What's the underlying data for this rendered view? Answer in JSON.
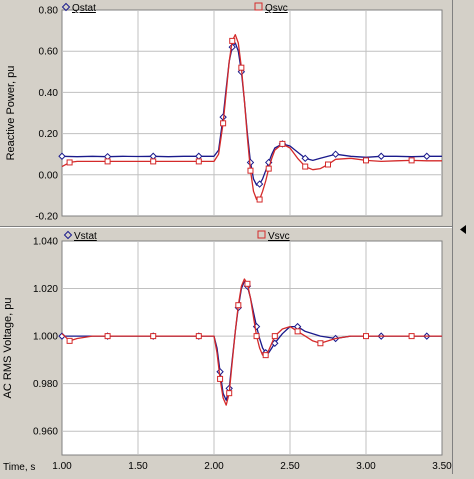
{
  "colors": {
    "window_bg": "#d4d0c8",
    "plot_bg": "#ffffff",
    "grid": "#c0c0c0",
    "stat": "#1a1a8c",
    "svc": "#d42a2a"
  },
  "time_axis": {
    "label": "Time, s",
    "ticks": [
      "1.00",
      "1.50",
      "2.00",
      "2.50",
      "3.00",
      "3.50"
    ]
  },
  "chart_data": [
    {
      "type": "line",
      "ylabel": "Reactive Power, pu",
      "xlim": [
        1.0,
        3.5
      ],
      "ylim": [
        -0.2,
        0.8
      ],
      "yticks": [
        "0.80",
        "0.60",
        "0.40",
        "0.20",
        "0.00",
        "-0.20"
      ],
      "grid": true,
      "legend": [
        "Qstat",
        "Qsvc"
      ],
      "series": [
        {
          "name": "Qstat",
          "marker": "diamond",
          "x": [
            1.0,
            1.1,
            1.2,
            1.3,
            1.4,
            1.5,
            1.6,
            1.7,
            1.8,
            1.9,
            2.0,
            2.03,
            2.06,
            2.08,
            2.1,
            2.12,
            2.14,
            2.16,
            2.18,
            2.2,
            2.22,
            2.24,
            2.26,
            2.28,
            2.3,
            2.32,
            2.34,
            2.36,
            2.38,
            2.4,
            2.45,
            2.5,
            2.55,
            2.6,
            2.65,
            2.7,
            2.8,
            2.9,
            3.0,
            3.1,
            3.2,
            3.3,
            3.4,
            3.5
          ],
          "values": [
            0.09,
            0.088,
            0.09,
            0.088,
            0.09,
            0.089,
            0.09,
            0.088,
            0.09,
            0.09,
            0.09,
            0.12,
            0.28,
            0.42,
            0.55,
            0.62,
            0.64,
            0.6,
            0.5,
            0.36,
            0.2,
            0.06,
            -0.02,
            -0.05,
            -0.045,
            -0.02,
            0.02,
            0.06,
            0.1,
            0.13,
            0.15,
            0.14,
            0.11,
            0.08,
            0.07,
            0.08,
            0.1,
            0.09,
            0.085,
            0.09,
            0.09,
            0.088,
            0.09,
            0.09
          ]
        },
        {
          "name": "Qsvc",
          "marker": "square",
          "x": [
            1.0,
            1.05,
            1.1,
            1.2,
            1.3,
            1.4,
            1.5,
            1.6,
            1.7,
            1.8,
            1.9,
            2.0,
            2.03,
            2.06,
            2.08,
            2.1,
            2.12,
            2.14,
            2.16,
            2.18,
            2.2,
            2.22,
            2.24,
            2.26,
            2.28,
            2.3,
            2.32,
            2.34,
            2.36,
            2.38,
            2.4,
            2.45,
            2.5,
            2.55,
            2.6,
            2.65,
            2.7,
            2.75,
            2.8,
            2.9,
            3.0,
            3.1,
            3.2,
            3.3,
            3.4,
            3.5
          ],
          "values": [
            0.04,
            0.06,
            0.065,
            0.065,
            0.065,
            0.065,
            0.065,
            0.065,
            0.065,
            0.065,
            0.065,
            0.065,
            0.1,
            0.25,
            0.4,
            0.55,
            0.65,
            0.68,
            0.64,
            0.52,
            0.36,
            0.18,
            0.02,
            -0.08,
            -0.12,
            -0.12,
            -0.08,
            -0.03,
            0.03,
            0.08,
            0.12,
            0.15,
            0.13,
            0.08,
            0.04,
            0.025,
            0.03,
            0.05,
            0.075,
            0.08,
            0.07,
            0.065,
            0.068,
            0.07,
            0.068,
            0.068
          ]
        }
      ]
    },
    {
      "type": "line",
      "ylabel": "AC RMS Voltage, pu",
      "xlim": [
        1.0,
        3.5
      ],
      "ylim": [
        0.95,
        1.04
      ],
      "yticks": [
        "1.040",
        "1.020",
        "1.000",
        "0.980",
        "0.960"
      ],
      "grid": true,
      "legend": [
        "Vstat",
        "Vsvc"
      ],
      "series": [
        {
          "name": "Vstat",
          "marker": "diamond",
          "x": [
            1.0,
            1.1,
            1.2,
            1.3,
            1.4,
            1.5,
            1.6,
            1.7,
            1.8,
            1.9,
            2.0,
            2.02,
            2.04,
            2.06,
            2.08,
            2.1,
            2.12,
            2.14,
            2.16,
            2.18,
            2.2,
            2.22,
            2.24,
            2.26,
            2.28,
            2.3,
            2.32,
            2.34,
            2.36,
            2.38,
            2.4,
            2.45,
            2.5,
            2.55,
            2.6,
            2.7,
            2.8,
            2.9,
            3.0,
            3.1,
            3.2,
            3.3,
            3.4,
            3.5
          ],
          "values": [
            1.0,
            1.0,
            1.0,
            1.0,
            1.0,
            1.0,
            1.0,
            1.0,
            1.0,
            1.0,
            1.0,
            0.995,
            0.985,
            0.976,
            0.973,
            0.978,
            0.99,
            1.002,
            1.012,
            1.02,
            1.023,
            1.021,
            1.016,
            1.01,
            1.004,
            0.999,
            0.995,
            0.993,
            0.993,
            0.995,
            0.997,
            1.001,
            1.004,
            1.004,
            1.002,
            1.0,
            0.999,
            1.0,
            1.0,
            1.0,
            1.0,
            1.0,
            1.0,
            1.0
          ]
        },
        {
          "name": "Vsvc",
          "marker": "square",
          "x": [
            1.0,
            1.05,
            1.1,
            1.2,
            1.3,
            1.4,
            1.5,
            1.6,
            1.7,
            1.8,
            1.9,
            2.0,
            2.02,
            2.04,
            2.06,
            2.08,
            2.1,
            2.12,
            2.14,
            2.16,
            2.18,
            2.2,
            2.22,
            2.24,
            2.26,
            2.28,
            2.3,
            2.32,
            2.34,
            2.36,
            2.38,
            2.4,
            2.45,
            2.5,
            2.55,
            2.6,
            2.65,
            2.7,
            2.8,
            2.9,
            3.0,
            3.1,
            3.2,
            3.3,
            3.4,
            3.5
          ],
          "values": [
            1.001,
            0.998,
            0.999,
            1.0,
            1.0,
            1.0,
            1.0,
            1.0,
            1.0,
            1.0,
            1.0,
            1.0,
            0.993,
            0.982,
            0.974,
            0.971,
            0.976,
            0.989,
            1.002,
            1.013,
            1.021,
            1.024,
            1.022,
            1.016,
            1.008,
            1.0,
            0.995,
            0.992,
            0.992,
            0.994,
            0.997,
            1.0,
            1.003,
            1.004,
            1.002,
            1.0,
            0.998,
            0.997,
            0.999,
            1.0,
            1.0,
            1.0,
            1.0,
            1.0,
            1.0,
            1.0
          ]
        }
      ]
    }
  ]
}
